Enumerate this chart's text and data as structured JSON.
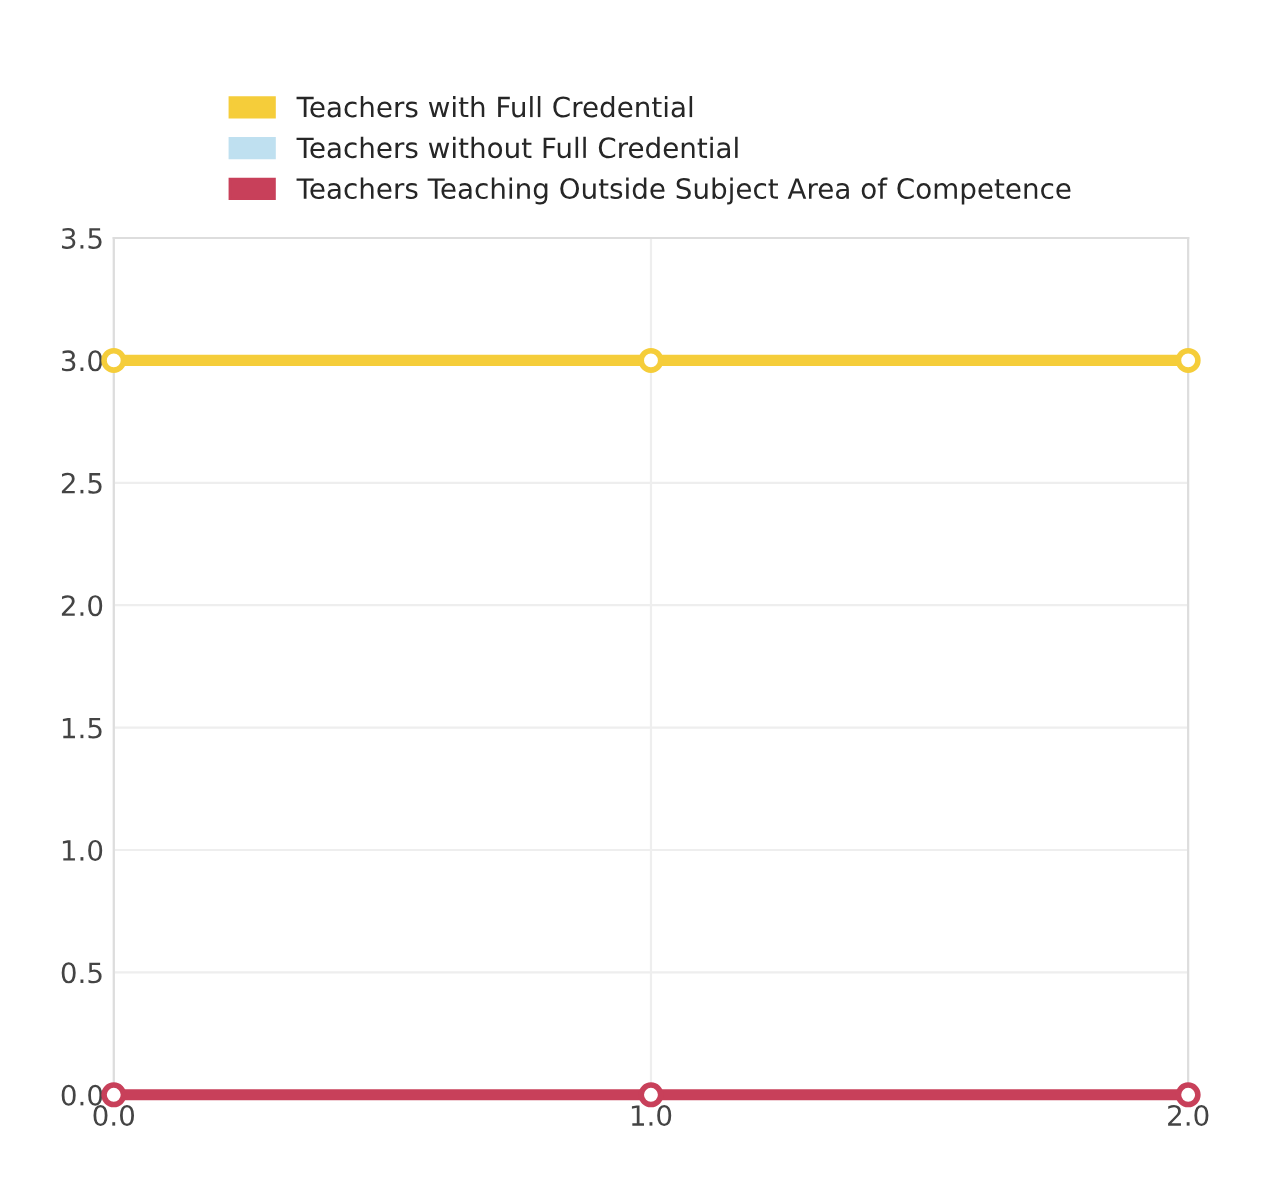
{
  "chart_data": {
    "type": "line",
    "x": [
      0.0,
      1.0,
      2.0
    ],
    "series": [
      {
        "name": "Teachers with Full Credential",
        "color": "#f5cd3a",
        "values": [
          3.0,
          3.0,
          3.0
        ]
      },
      {
        "name": "Teachers without Full Credential",
        "color": "#bfe0f0",
        "values": [
          null,
          null,
          null
        ]
      },
      {
        "name": "Teachers Teaching Outside Subject Area of Competence",
        "color": "#c8405a",
        "values": [
          0.0,
          0.0,
          0.0
        ]
      }
    ],
    "xlim": [
      0.0,
      2.0
    ],
    "xticks": [
      {
        "value": 0,
        "label": "0.0"
      },
      {
        "value": 1,
        "label": "1.0"
      },
      {
        "value": 2,
        "label": "2.0"
      }
    ],
    "ylim": [
      0.0,
      3.5
    ],
    "yticks": [
      {
        "value": 0,
        "label": "0.0"
      },
      {
        "value": 0.5,
        "label": "0.5"
      },
      {
        "value": 1,
        "label": "1.0"
      },
      {
        "value": 1.5,
        "label": "1.5"
      },
      {
        "value": 2,
        "label": "2.0"
      },
      {
        "value": 2.5,
        "label": "2.5"
      },
      {
        "value": 3,
        "label": "3.0"
      },
      {
        "value": 3.5,
        "label": "3.5"
      }
    ],
    "grid": true,
    "legend": "top",
    "marker": "circle",
    "line_style": "solid"
  }
}
